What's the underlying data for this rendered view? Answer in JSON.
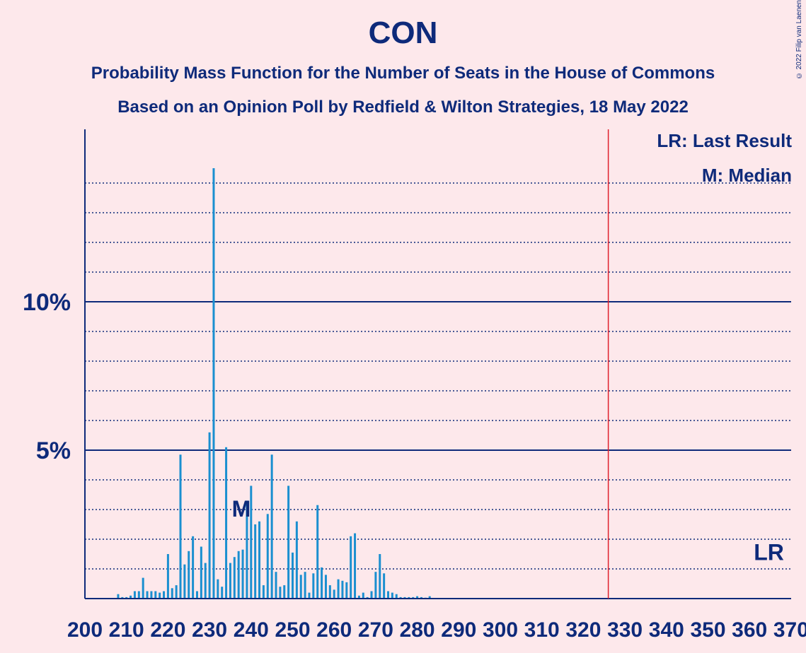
{
  "header": {
    "title": "CON",
    "subtitle1": "Probability Mass Function for the Number of Seats in the House of Commons",
    "subtitle2": "Based on an Opinion Poll by Redfield & Wilton Strategies, 18 May 2022",
    "copyright": "© 2022 Filip van Laenen"
  },
  "legend": {
    "lr": "LR: Last Result",
    "m": "M: Median"
  },
  "colors": {
    "background": "#FDE8EB",
    "bar": "#1A8FD0",
    "axis": "#0E2A7A",
    "last_result_line": "#E0202C"
  },
  "chart_data": {
    "type": "bar",
    "xlim": [
      200,
      370
    ],
    "ylim": [
      0,
      15
    ],
    "x_ticks": [
      200,
      210,
      220,
      230,
      240,
      250,
      260,
      270,
      280,
      290,
      300,
      310,
      320,
      330,
      340,
      350,
      360,
      370
    ],
    "x_tick_labels": [
      "200",
      "210",
      "220",
      "230",
      "240",
      "250",
      "260",
      "270",
      "280",
      "290",
      "300",
      "310",
      "320",
      "330",
      "340",
      "350",
      "360",
      "370"
    ],
    "y_major_ticks": [
      5,
      10
    ],
    "y_tick_labels": [
      "5%",
      "10%"
    ],
    "y_minor_gridlines": [
      1,
      2,
      3,
      4,
      6,
      7,
      8,
      9,
      11,
      12,
      13,
      14
    ],
    "last_result": 365,
    "last_result_label": "LR",
    "median": 239,
    "median_label": "M",
    "majority_line": 326,
    "x": [
      208,
      209,
      210,
      211,
      212,
      213,
      214,
      215,
      216,
      217,
      218,
      219,
      220,
      221,
      222,
      223,
      224,
      225,
      226,
      227,
      228,
      229,
      230,
      231,
      232,
      233,
      234,
      235,
      236,
      237,
      238,
      239,
      240,
      241,
      242,
      243,
      244,
      245,
      246,
      247,
      248,
      249,
      250,
      251,
      252,
      253,
      254,
      255,
      256,
      257,
      258,
      259,
      260,
      261,
      262,
      263,
      264,
      265,
      266,
      267,
      268,
      269,
      270,
      271,
      272,
      273,
      274,
      275,
      276,
      277,
      278,
      279,
      280,
      281,
      282,
      283
    ],
    "values": [
      0.15,
      0.05,
      0.05,
      0.1,
      0.25,
      0.25,
      0.7,
      0.25,
      0.25,
      0.25,
      0.2,
      0.25,
      1.5,
      0.35,
      0.45,
      4.85,
      1.15,
      1.6,
      2.1,
      0.25,
      1.75,
      1.2,
      5.6,
      14.5,
      0.65,
      0.4,
      5.1,
      1.2,
      1.4,
      1.6,
      1.65,
      3.3,
      3.8,
      2.5,
      2.6,
      0.45,
      2.85,
      4.85,
      0.9,
      0.4,
      0.45,
      3.8,
      1.55,
      2.6,
      0.8,
      0.9,
      0.2,
      0.85,
      3.15,
      1.05,
      0.8,
      0.45,
      0.3,
      0.65,
      0.6,
      0.55,
      2.1,
      2.2,
      0.1,
      0.2,
      0.05,
      0.25,
      0.9,
      1.5,
      0.85,
      0.25,
      0.2,
      0.15,
      0.05,
      0.05,
      0.05,
      0.05,
      0.08,
      0.05,
      0.03,
      0.08
    ]
  }
}
